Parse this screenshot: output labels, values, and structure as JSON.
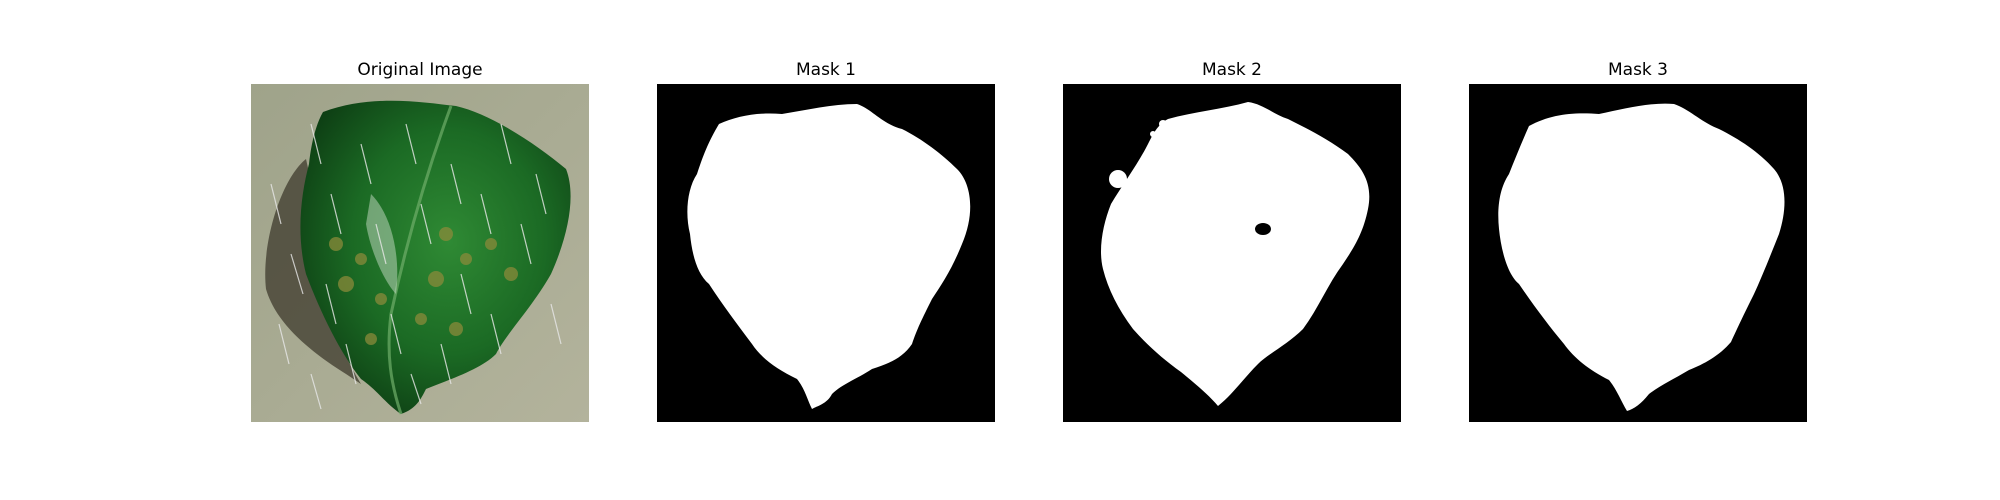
{
  "figure": {
    "panels": [
      {
        "title": "Original Image",
        "kind": "photo",
        "subject": "leaf"
      },
      {
        "title": "Mask 1",
        "kind": "mask"
      },
      {
        "title": "Mask 2",
        "kind": "mask"
      },
      {
        "title": "Mask 3",
        "kind": "mask"
      }
    ]
  },
  "colors": {
    "background": "#ffffff",
    "mask_foreground": "#ffffff",
    "mask_background": "#000000",
    "leaf_dark": "#0e3f14",
    "leaf_mid": "#1f7a2a",
    "photo_backdrop": "#a9ab8f"
  }
}
